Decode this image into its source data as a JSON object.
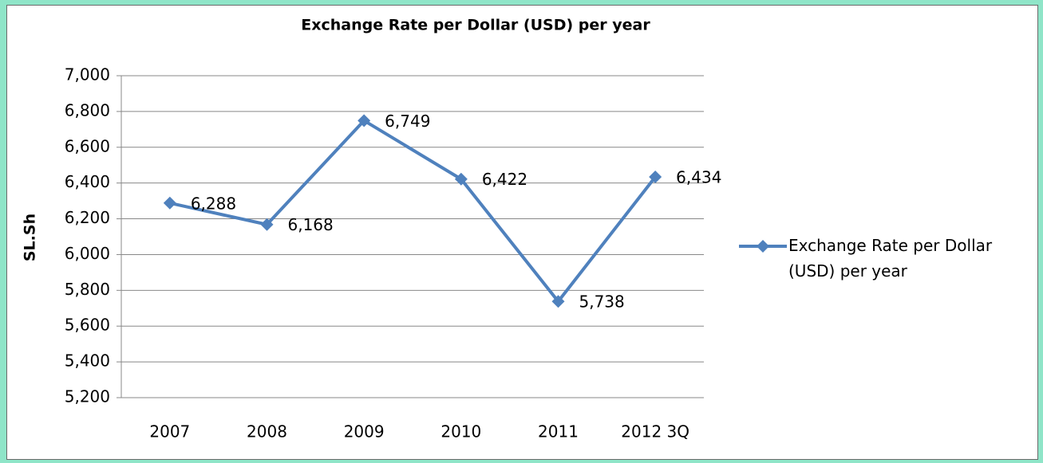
{
  "chart_data": {
    "type": "line",
    "title": "Exchange Rate per Dollar (USD) per year",
    "y_label": "SL.Sh",
    "categories": [
      "2007",
      "2008",
      "2009",
      "2010",
      "2011",
      "2012 3Q"
    ],
    "series": [
      {
        "name": "Exchange Rate per Dollar (USD) per year",
        "color": "#4f81bd",
        "values": [
          6288,
          6168,
          6749,
          6422,
          5738,
          6434
        ],
        "value_labels": [
          "6,288",
          "6,168",
          "6,749",
          "6,422",
          "5,738",
          "6,434"
        ]
      }
    ],
    "ylim": [
      5200,
      7000
    ],
    "yticks": [
      {
        "value": 5200,
        "label": "5,200"
      },
      {
        "value": 5400,
        "label": "5,400"
      },
      {
        "value": 5600,
        "label": "5,600"
      },
      {
        "value": 5800,
        "label": "5,800"
      },
      {
        "value": 6000,
        "label": "6,000"
      },
      {
        "value": 6200,
        "label": "6,200"
      },
      {
        "value": 6400,
        "label": "6,400"
      },
      {
        "value": 6600,
        "label": "6,600"
      },
      {
        "value": 6800,
        "label": "6,800"
      },
      {
        "value": 7000,
        "label": "7,000"
      }
    ],
    "grid": true,
    "legend": "right"
  }
}
